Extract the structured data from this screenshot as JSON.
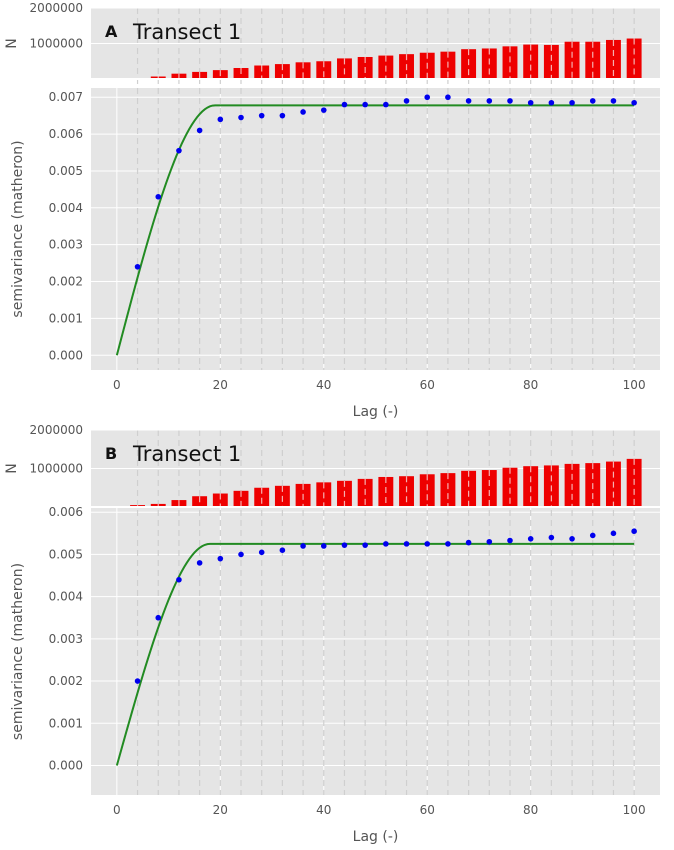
{
  "chart_data": [
    {
      "type": "scatter",
      "panel_letter": "A",
      "title": "Transect 1",
      "xlabel": "Lag (-)",
      "ylabel": "semivariance (matheron)",
      "hist_ylabel": "N",
      "xlim": [
        -5,
        105
      ],
      "ylim": [
        -0.0004,
        0.00725
      ],
      "hist_ylim": [
        0,
        2000000
      ],
      "x_ticks": [
        "0",
        "20",
        "40",
        "60",
        "80",
        "100"
      ],
      "y_ticks": [
        "0.000",
        "0.001",
        "0.002",
        "0.003",
        "0.004",
        "0.005",
        "0.006",
        "0.007"
      ],
      "hist_ticks": [
        "1000000",
        "2000000"
      ],
      "grid": true,
      "histogram": {
        "name": "N",
        "color": "#ee0000",
        "x": [
          4,
          8,
          12,
          16,
          20,
          24,
          28,
          32,
          36,
          40,
          44,
          48,
          52,
          56,
          60,
          64,
          68,
          72,
          76,
          80,
          84,
          88,
          92,
          96,
          100
        ],
        "values": [
          10000,
          70000,
          150000,
          200000,
          250000,
          310000,
          380000,
          420000,
          470000,
          500000,
          580000,
          620000,
          660000,
          700000,
          740000,
          770000,
          840000,
          860000,
          920000,
          970000,
          960000,
          1050000,
          1050000,
          1100000,
          1140000
        ]
      },
      "experimental": {
        "name": "experimental semivariance",
        "color": "#0000ee",
        "x": [
          4,
          8,
          12,
          16,
          20,
          24,
          28,
          32,
          36,
          40,
          44,
          48,
          52,
          56,
          60,
          64,
          68,
          72,
          76,
          80,
          84,
          88,
          92,
          96,
          100
        ],
        "y": [
          0.0024,
          0.0043,
          0.00555,
          0.0061,
          0.0064,
          0.00645,
          0.0065,
          0.0065,
          0.0066,
          0.00665,
          0.0068,
          0.0068,
          0.0068,
          0.0069,
          0.007,
          0.007,
          0.0069,
          0.0069,
          0.0069,
          0.00685,
          0.00685,
          0.00685,
          0.0069,
          0.0069,
          0.00685
        ]
      },
      "model": {
        "name": "spherical model",
        "color": "#228b22",
        "range": 19,
        "sill": 0.00678,
        "nugget": 0,
        "x_max": 100
      }
    },
    {
      "type": "scatter",
      "panel_letter": "B",
      "title": "Transect 1",
      "xlabel": "Lag (-)",
      "ylabel": "semivariance (matheron)",
      "hist_ylabel": "N",
      "xlim": [
        -5,
        105
      ],
      "ylim": [
        -0.0007,
        0.0061
      ],
      "hist_ylim": [
        0,
        2000000
      ],
      "x_ticks": [
        "0",
        "20",
        "40",
        "60",
        "80",
        "100"
      ],
      "y_ticks": [
        "0.000",
        "0.001",
        "0.002",
        "0.003",
        "0.004",
        "0.005",
        "0.006"
      ],
      "hist_ticks": [
        "1000000",
        "2000000"
      ],
      "grid": true,
      "histogram": {
        "name": "N",
        "color": "#ee0000",
        "x": [
          4,
          8,
          12,
          16,
          20,
          24,
          28,
          32,
          36,
          40,
          44,
          48,
          52,
          56,
          60,
          64,
          68,
          72,
          76,
          80,
          84,
          88,
          92,
          96,
          100
        ],
        "values": [
          50000,
          80000,
          180000,
          280000,
          350000,
          420000,
          500000,
          550000,
          600000,
          640000,
          680000,
          730000,
          780000,
          800000,
          850000,
          880000,
          940000,
          960000,
          1020000,
          1060000,
          1080000,
          1120000,
          1140000,
          1180000,
          1250000
        ]
      },
      "experimental": {
        "name": "experimental semivariance",
        "color": "#0000ee",
        "x": [
          4,
          8,
          12,
          16,
          20,
          24,
          28,
          32,
          36,
          40,
          44,
          48,
          52,
          56,
          60,
          64,
          68,
          72,
          76,
          80,
          84,
          88,
          92,
          96,
          100
        ],
        "y": [
          0.002,
          0.0035,
          0.0044,
          0.0048,
          0.0049,
          0.005,
          0.00505,
          0.0051,
          0.0052,
          0.0052,
          0.00522,
          0.00522,
          0.00525,
          0.00525,
          0.00525,
          0.00525,
          0.00528,
          0.0053,
          0.00533,
          0.00537,
          0.0054,
          0.00537,
          0.00545,
          0.0055,
          0.00555
        ]
      },
      "model": {
        "name": "spherical model",
        "color": "#228b22",
        "range": 18,
        "sill": 0.00525,
        "nugget": 0,
        "x_max": 100
      }
    }
  ]
}
